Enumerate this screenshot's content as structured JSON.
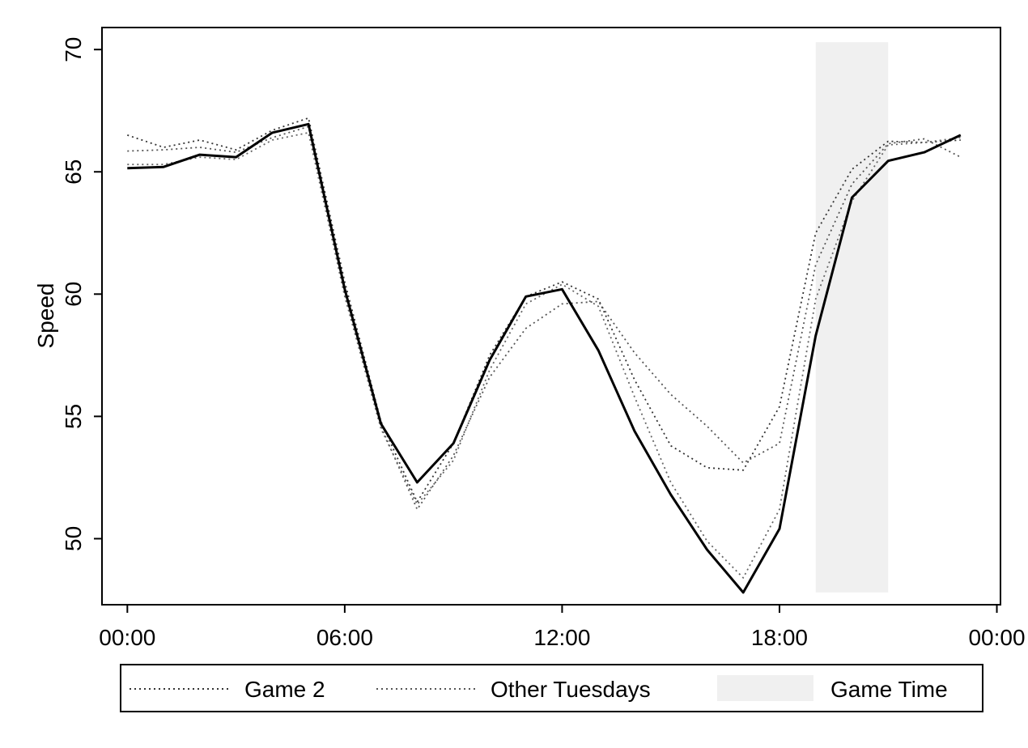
{
  "chart_data": {
    "type": "line",
    "ylabel": "Speed",
    "xlabel": "",
    "ylim": [
      47.3,
      70.9
    ],
    "xlim": [
      -0.7,
      24.1
    ],
    "y_ticks": [
      50,
      55,
      60,
      65,
      70
    ],
    "y_tick_labels": [
      "50",
      "55",
      "60",
      "65",
      "70"
    ],
    "x_ticks": [
      0,
      6,
      12,
      18,
      24
    ],
    "x_tick_labels": [
      "00:00",
      "06:00",
      "12:00",
      "18:00",
      "00:00"
    ],
    "shaded_region": {
      "name": "Game Time",
      "x": [
        19,
        21
      ],
      "y": [
        47.8,
        70.3
      ],
      "color": "#f0f0f0"
    },
    "series": [
      {
        "style": "solid",
        "color": "#000000",
        "x": [
          0,
          1,
          2,
          3,
          4,
          5,
          6,
          7,
          8,
          9,
          10,
          11,
          12,
          13,
          14,
          15,
          16,
          17,
          18,
          19,
          20,
          21,
          22,
          23
        ],
        "values": [
          65.15,
          65.2,
          65.7,
          65.6,
          66.6,
          66.95,
          60.2,
          54.7,
          52.3,
          53.9,
          57.3,
          59.9,
          60.2,
          57.7,
          54.4,
          51.8,
          49.55,
          47.8,
          50.4,
          58.3,
          63.95,
          65.45,
          65.8,
          66.5
        ]
      },
      {
        "name": "Game 2",
        "style": "dotted",
        "color": "#333333",
        "x": [
          0,
          1,
          2,
          3,
          4,
          5,
          6,
          7,
          8,
          9,
          10,
          11,
          12,
          13,
          14,
          15,
          16,
          17,
          18,
          19,
          20,
          21,
          22,
          23
        ],
        "values": [
          66.5,
          66.0,
          66.3,
          65.9,
          66.7,
          67.2,
          60.5,
          54.8,
          51.5,
          53.9,
          57.5,
          59.9,
          60.5,
          59.8,
          56.5,
          53.8,
          52.9,
          52.8,
          55.4,
          62.5,
          65.1,
          66.25,
          66.2,
          66.3
        ]
      },
      {
        "name": "Other Tuesdays",
        "style": "dotted",
        "color": "#555555",
        "x": [
          0,
          1,
          2,
          3,
          4,
          5,
          6,
          7,
          8,
          9,
          10,
          11,
          12,
          13,
          14,
          15,
          16,
          17,
          18,
          19,
          20,
          21,
          22,
          23
        ],
        "values": [
          65.85,
          65.9,
          66.0,
          65.8,
          66.4,
          66.85,
          60.0,
          54.6,
          51.2,
          53.4,
          56.6,
          58.6,
          59.6,
          59.7,
          57.6,
          55.9,
          54.6,
          53.1,
          53.9,
          61.2,
          64.5,
          66.15,
          66.35,
          65.6
        ]
      },
      {
        "style": "dotted",
        "color": "#666666",
        "x": [
          0,
          1,
          2,
          3,
          4,
          5,
          6,
          7,
          8,
          9,
          10,
          11,
          12,
          13,
          14,
          15,
          16,
          17,
          18,
          19,
          20,
          21,
          22,
          23
        ],
        "values": [
          65.3,
          65.3,
          65.6,
          65.5,
          66.3,
          66.6,
          59.9,
          54.5,
          51.4,
          53.2,
          56.9,
          59.6,
          60.4,
          59.5,
          55.8,
          52.3,
          49.9,
          48.4,
          51.2,
          59.8,
          63.8,
          66.1,
          66.2,
          66.4
        ]
      }
    ],
    "legend": {
      "position": "bottom",
      "entries": [
        {
          "label": "Game 2",
          "kind": "dotted-line"
        },
        {
          "label": "Other Tuesdays",
          "kind": "dotted-line"
        },
        {
          "label": "Game Time",
          "kind": "shaded-box"
        }
      ]
    },
    "grid": false
  }
}
